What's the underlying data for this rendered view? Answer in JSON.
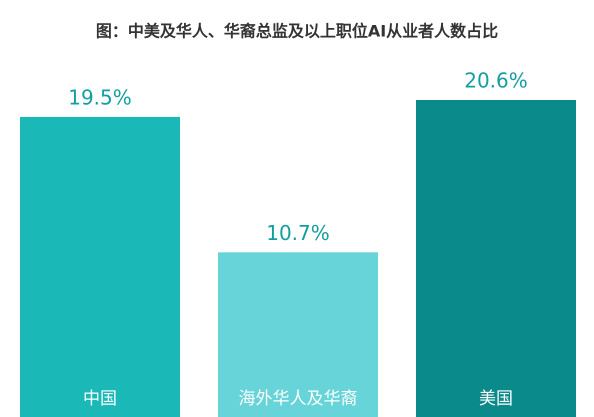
{
  "chart_data": {
    "type": "bar",
    "title": "图：中美及华人、华裔总监及以上职位AI从业者人数占比",
    "categories": [
      "中国",
      "海外华人及华裔",
      "美国"
    ],
    "values": [
      19.5,
      10.7,
      20.6
    ],
    "value_labels": [
      "19.5%",
      "10.7%",
      "20.6%"
    ],
    "colors": [
      "#1bb8b8",
      "#66d4d9",
      "#0a8a8a"
    ]
  }
}
